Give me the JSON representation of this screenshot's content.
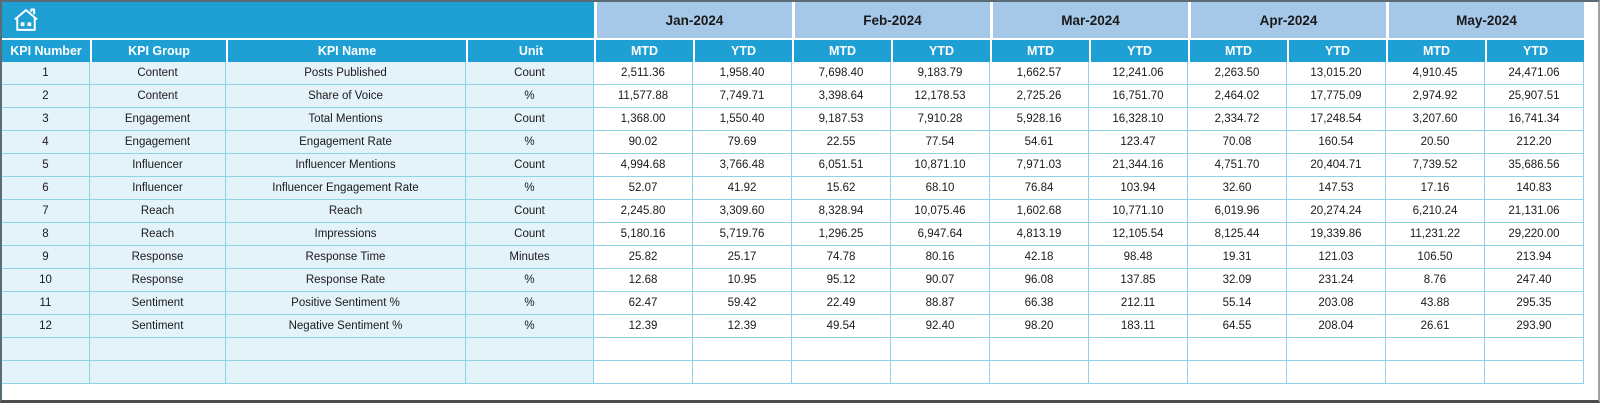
{
  "table": {
    "left_columns": [
      "KPI Number",
      "KPI Group",
      "KPI Name",
      "Unit"
    ],
    "months": [
      "Jan-2024",
      "Feb-2024",
      "Mar-2024",
      "Apr-2024",
      "May-2024"
    ],
    "sub_columns": [
      "MTD",
      "YTD"
    ],
    "rows": [
      {
        "number": "1",
        "group": "Content",
        "name": "Posts Published",
        "unit": "Count",
        "values": [
          "2,511.36",
          "1,958.40",
          "7,698.40",
          "9,183.79",
          "1,662.57",
          "12,241.06",
          "2,263.50",
          "13,015.20",
          "4,910.45",
          "24,471.06"
        ]
      },
      {
        "number": "2",
        "group": "Content",
        "name": "Share of Voice",
        "unit": "%",
        "values": [
          "11,577.88",
          "7,749.71",
          "3,398.64",
          "12,178.53",
          "2,725.26",
          "16,751.70",
          "2,464.02",
          "17,775.09",
          "2,974.92",
          "25,907.51"
        ]
      },
      {
        "number": "3",
        "group": "Engagement",
        "name": "Total Mentions",
        "unit": "Count",
        "values": [
          "1,368.00",
          "1,550.40",
          "9,187.53",
          "7,910.28",
          "5,928.16",
          "16,328.10",
          "2,334.72",
          "17,248.54",
          "3,207.60",
          "16,741.34"
        ]
      },
      {
        "number": "4",
        "group": "Engagement",
        "name": "Engagement Rate",
        "unit": "%",
        "values": [
          "90.02",
          "79.69",
          "22.55",
          "77.54",
          "54.61",
          "123.47",
          "70.08",
          "160.54",
          "20.50",
          "212.20"
        ]
      },
      {
        "number": "5",
        "group": "Influencer",
        "name": "Influencer Mentions",
        "unit": "Count",
        "values": [
          "4,994.68",
          "3,766.48",
          "6,051.51",
          "10,871.10",
          "7,971.03",
          "21,344.16",
          "4,751.70",
          "20,404.71",
          "7,739.52",
          "35,686.56"
        ]
      },
      {
        "number": "6",
        "group": "Influencer",
        "name": "Influencer Engagement Rate",
        "unit": "%",
        "values": [
          "52.07",
          "41.92",
          "15.62",
          "68.10",
          "76.84",
          "103.94",
          "32.60",
          "147.53",
          "17.16",
          "140.83"
        ]
      },
      {
        "number": "7",
        "group": "Reach",
        "name": "Reach",
        "unit": "Count",
        "values": [
          "2,245.80",
          "3,309.60",
          "8,328.94",
          "10,075.46",
          "1,602.68",
          "10,771.10",
          "6,019.96",
          "20,274.24",
          "6,210.24",
          "21,131.06"
        ]
      },
      {
        "number": "8",
        "group": "Reach",
        "name": "Impressions",
        "unit": "Count",
        "values": [
          "5,180.16",
          "5,719.76",
          "1,296.25",
          "6,947.64",
          "4,813.19",
          "12,105.54",
          "8,125.44",
          "19,339.86",
          "11,231.22",
          "29,220.00"
        ]
      },
      {
        "number": "9",
        "group": "Response",
        "name": "Response Time",
        "unit": "Minutes",
        "values": [
          "25.82",
          "25.17",
          "74.78",
          "80.16",
          "42.18",
          "98.48",
          "19.31",
          "121.03",
          "106.50",
          "213.94"
        ]
      },
      {
        "number": "10",
        "group": "Response",
        "name": "Response Rate",
        "unit": "%",
        "values": [
          "12.68",
          "10.95",
          "95.12",
          "90.07",
          "96.08",
          "137.85",
          "32.09",
          "231.24",
          "8.76",
          "247.40"
        ]
      },
      {
        "number": "11",
        "group": "Sentiment",
        "name": "Positive Sentiment %",
        "unit": "%",
        "values": [
          "62.47",
          "59.42",
          "22.49",
          "88.87",
          "66.38",
          "212.11",
          "55.14",
          "203.08",
          "43.88",
          "295.35"
        ]
      },
      {
        "number": "12",
        "group": "Sentiment",
        "name": "Negative Sentiment %",
        "unit": "%",
        "values": [
          "12.39",
          "12.39",
          "49.54",
          "92.40",
          "98.20",
          "183.11",
          "64.55",
          "208.04",
          "26.61",
          "293.90"
        ]
      }
    ],
    "empty_rows": 2
  },
  "icons": {
    "home": "home-icon"
  },
  "colors": {
    "header_cyan": "#1EA0D4",
    "month_band_blue": "#A5C8E9",
    "row_tint": "#E4F2F9",
    "grid_border": "#8FD4E6",
    "text_dark": "#1A1A1A",
    "header_text": "#FFFFFF"
  }
}
